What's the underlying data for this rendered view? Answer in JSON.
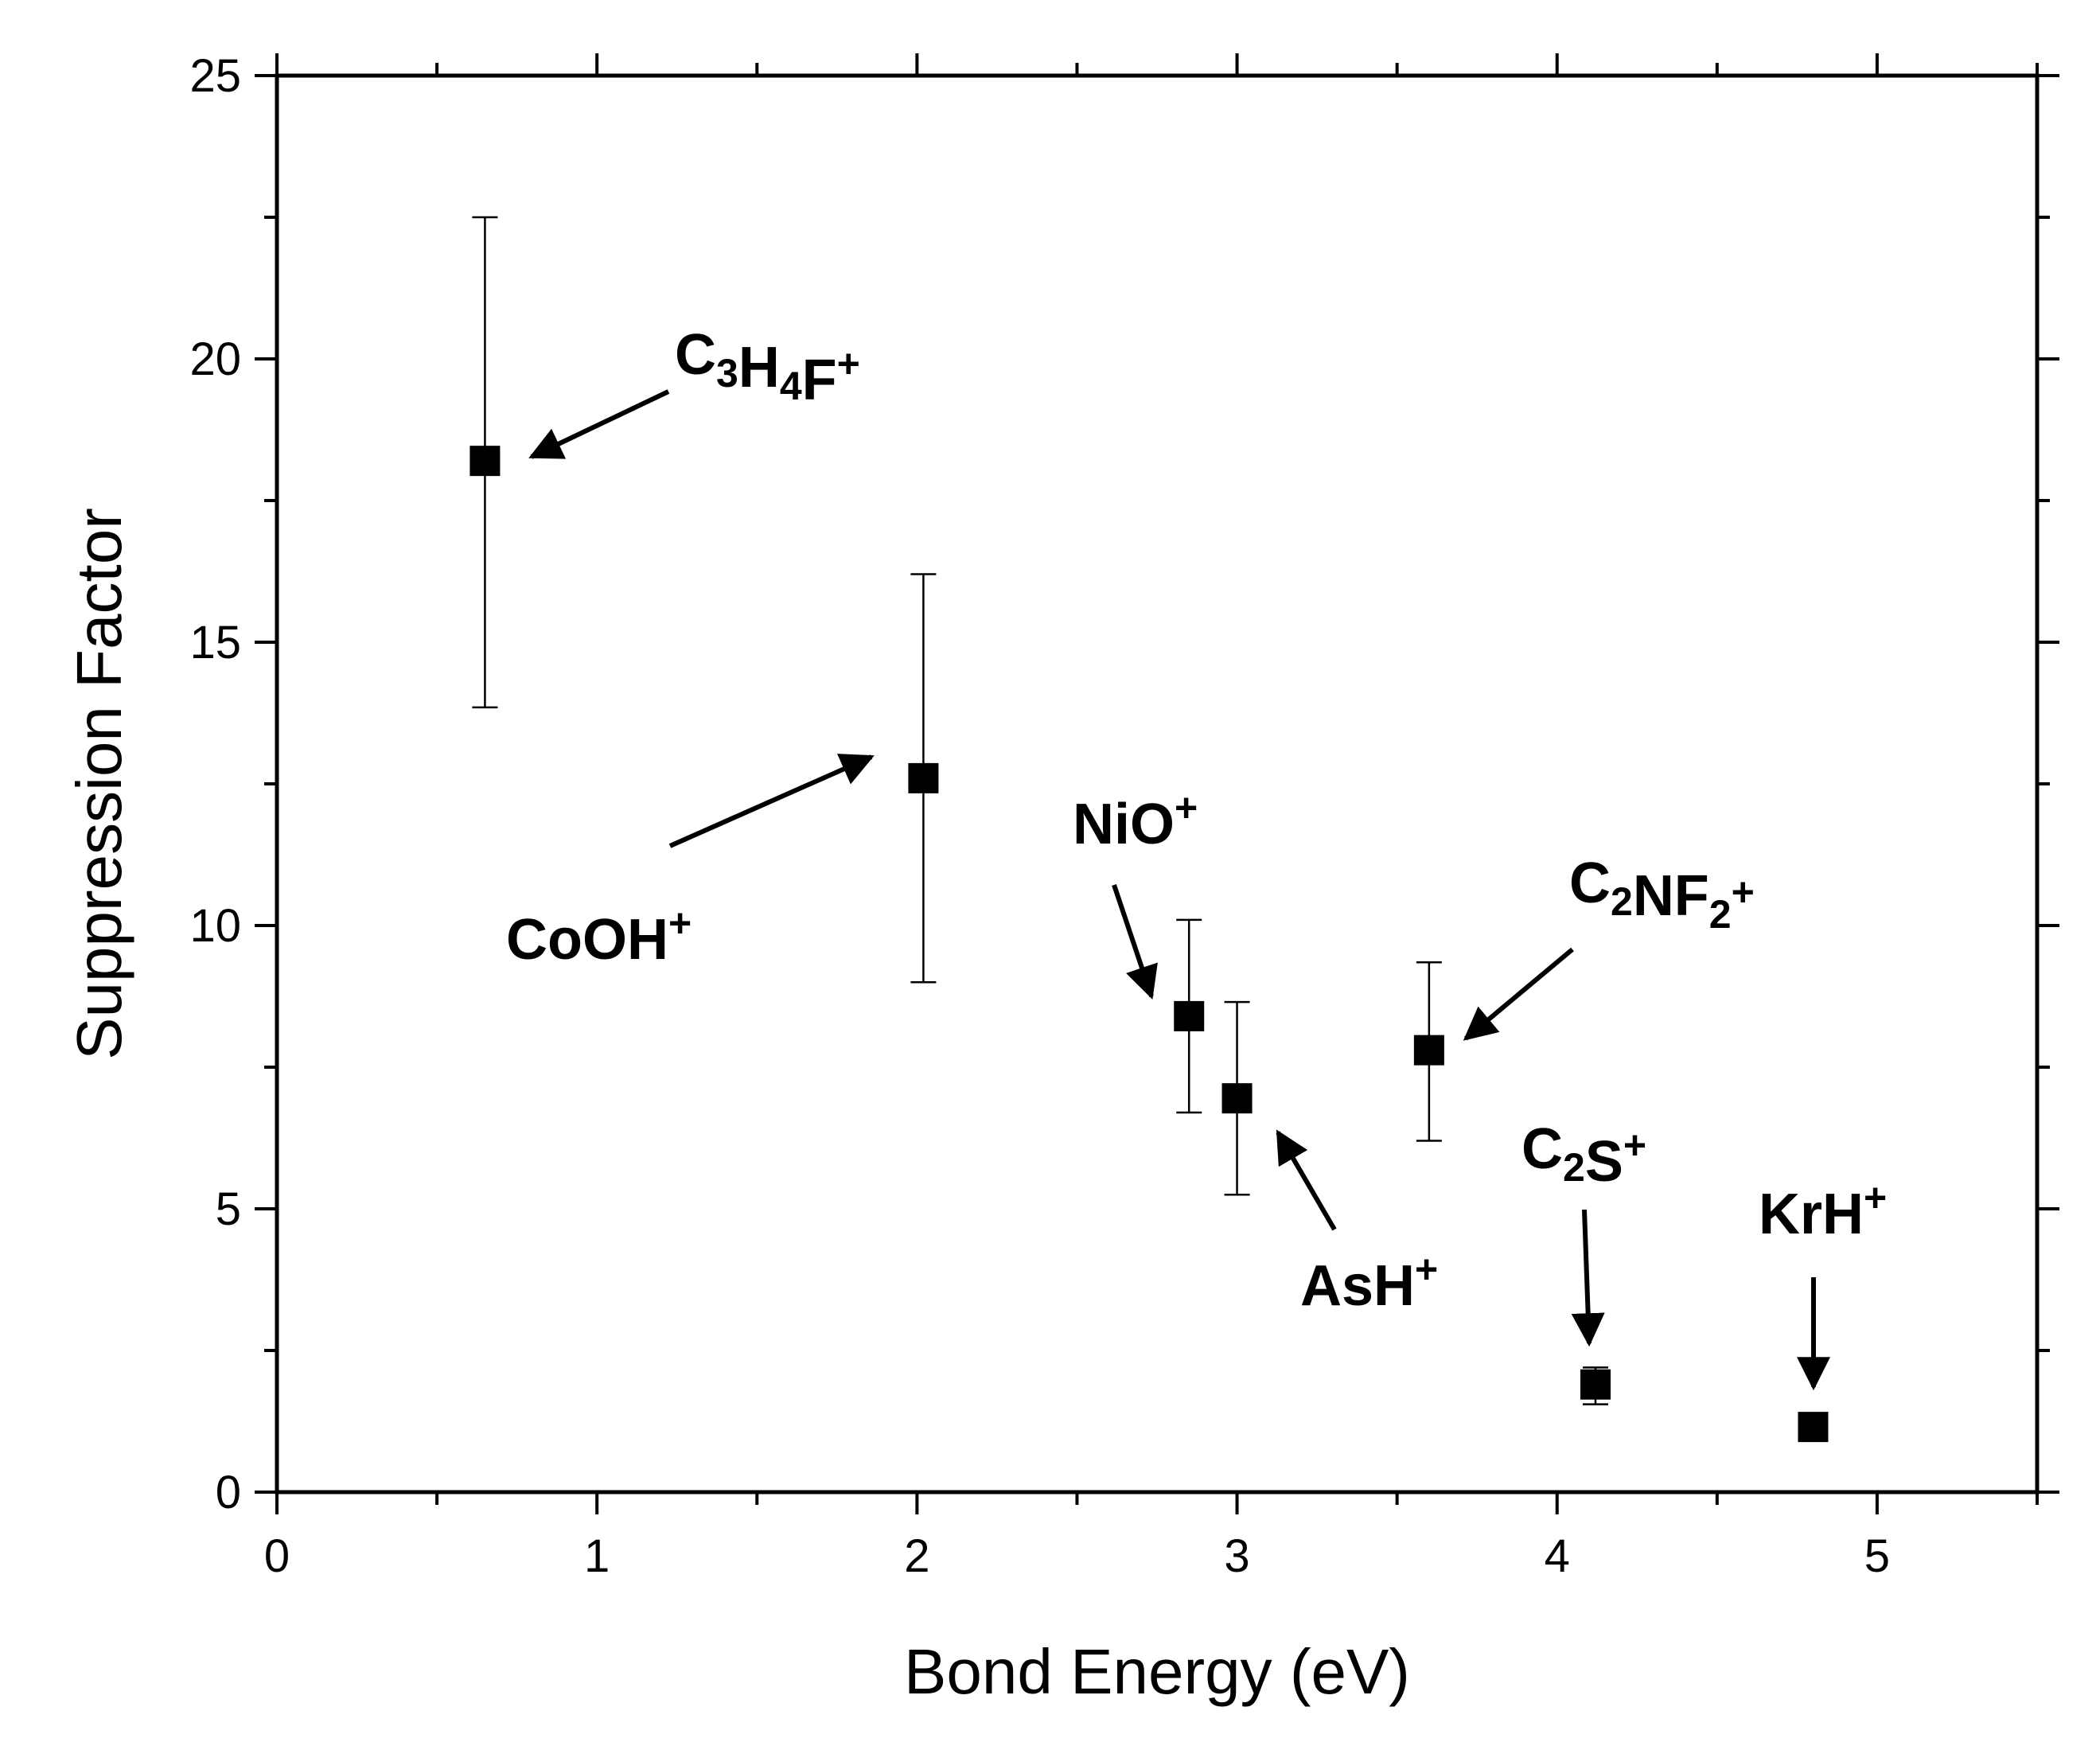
{
  "chart_data": {
    "type": "scatter",
    "xlabel": "Bond Energy (eV)",
    "ylabel": "Suppression Factor",
    "xlim": [
      0,
      5.5
    ],
    "ylim": [
      0,
      25
    ],
    "xticks": [
      "0",
      "1",
      "2",
      "3",
      "4",
      "5"
    ],
    "yticks": [
      "0",
      "5",
      "10",
      "15",
      "20",
      "25"
    ],
    "marker": "square",
    "grid": false,
    "points": [
      {
        "id": "C3H4F",
        "x": 0.65,
        "y": 18.2,
        "err_low": 13.85,
        "err_high": 22.5
      },
      {
        "id": "CoOH",
        "x": 2.02,
        "y": 12.6,
        "err_low": 9.0,
        "err_high": 16.2
      },
      {
        "id": "NiO",
        "x": 2.85,
        "y": 8.4,
        "err_low": 6.7,
        "err_high": 10.1
      },
      {
        "id": "AsH",
        "x": 3.0,
        "y": 6.95,
        "err_low": 5.25,
        "err_high": 8.65
      },
      {
        "id": "C2NF2",
        "x": 3.6,
        "y": 7.8,
        "err_low": 6.2,
        "err_high": 9.35
      },
      {
        "id": "C2S",
        "x": 4.12,
        "y": 1.9,
        "err_low": 1.55,
        "err_high": 2.2
      },
      {
        "id": "KrH",
        "x": 4.8,
        "y": 1.15,
        "err_low": null,
        "err_high": null
      }
    ],
    "annotations": [
      {
        "id": "C3H4F",
        "parts": [
          [
            "C",
            ""
          ],
          [
            "3",
            "sub"
          ],
          [
            "H",
            ""
          ],
          [
            "4",
            "sub"
          ],
          [
            "F",
            ""
          ],
          [
            "+",
            "sup"
          ]
        ]
      },
      {
        "id": "CoOH",
        "parts": [
          [
            "CoOH",
            ""
          ],
          [
            "+",
            "sup"
          ]
        ]
      },
      {
        "id": "NiO",
        "parts": [
          [
            "NiO",
            ""
          ],
          [
            "+",
            "sup"
          ]
        ]
      },
      {
        "id": "AsH",
        "parts": [
          [
            "AsH",
            ""
          ],
          [
            "+",
            "sup"
          ]
        ]
      },
      {
        "id": "C2NF2",
        "parts": [
          [
            "C",
            ""
          ],
          [
            "2",
            "sub"
          ],
          [
            "NF",
            ""
          ],
          [
            "2",
            "sub"
          ],
          [
            "+",
            "sup"
          ]
        ]
      },
      {
        "id": "C2S",
        "parts": [
          [
            "C",
            ""
          ],
          [
            "2",
            "sub"
          ],
          [
            "S",
            ""
          ],
          [
            "+",
            "sup"
          ]
        ]
      },
      {
        "id": "KrH",
        "parts": [
          [
            "KrH",
            ""
          ],
          [
            "+",
            "sup"
          ]
        ]
      }
    ]
  }
}
